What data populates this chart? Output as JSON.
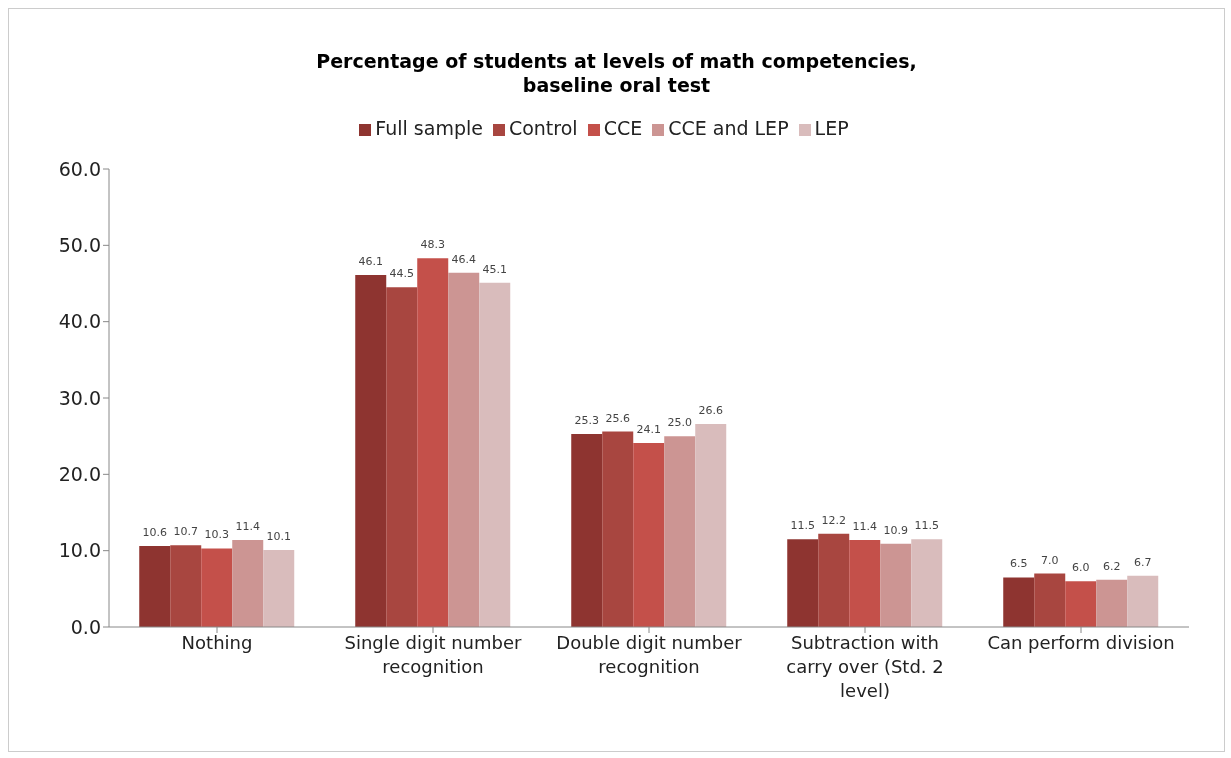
{
  "chart_data": {
    "type": "bar",
    "title": "Percentage of students at levels of math competencies,\nbaseline oral test",
    "categories": [
      "Nothing",
      "Single digit number recognition",
      "Double digit number recognition",
      "Subtraction with carry over (Std. 2 level)",
      "Can perform division"
    ],
    "series": [
      {
        "name": "Full sample",
        "color": "#8e3430",
        "values": [
          10.6,
          46.1,
          25.3,
          11.5,
          6.5
        ],
        "value_labels": [
          "10.6",
          "46.1",
          "25.3",
          "11.5",
          "6.5"
        ]
      },
      {
        "name": "Control",
        "color": "#a84640",
        "values": [
          10.7,
          44.5,
          25.6,
          12.2,
          7.0
        ],
        "value_labels": [
          "10.7",
          "44.5",
          "25.6",
          "12.2",
          "7.0"
        ]
      },
      {
        "name": "CCE",
        "color": "#c4504a",
        "values": [
          10.3,
          48.3,
          24.1,
          11.4,
          6.0
        ],
        "value_labels": [
          "10.3",
          "48.3",
          "24.1",
          "11.4",
          "6.0"
        ]
      },
      {
        "name": "CCE and LEP",
        "color": "#cc9593",
        "values": [
          11.4,
          46.4,
          25.0,
          10.9,
          6.2
        ],
        "value_labels": [
          "11.4",
          "46.4",
          "25.0",
          "10.9",
          "6.2"
        ]
      },
      {
        "name": "LEP",
        "color": "#d9bcbc",
        "values": [
          10.1,
          45.1,
          26.6,
          11.5,
          6.7
        ],
        "value_labels": [
          "10.1",
          "45.1",
          "26.6",
          "11.5",
          "6.7"
        ]
      }
    ],
    "ylim": [
      0,
      60
    ],
    "yticks": [
      {
        "value": 0,
        "label": "0.0"
      },
      {
        "value": 10,
        "label": "10.0"
      },
      {
        "value": 20,
        "label": "20.0"
      },
      {
        "value": 30,
        "label": "30.0"
      },
      {
        "value": 40,
        "label": "40.0"
      },
      {
        "value": 50,
        "label": "50.0"
      },
      {
        "value": 60,
        "label": "60.0"
      }
    ],
    "legend": "top",
    "grid": false
  }
}
